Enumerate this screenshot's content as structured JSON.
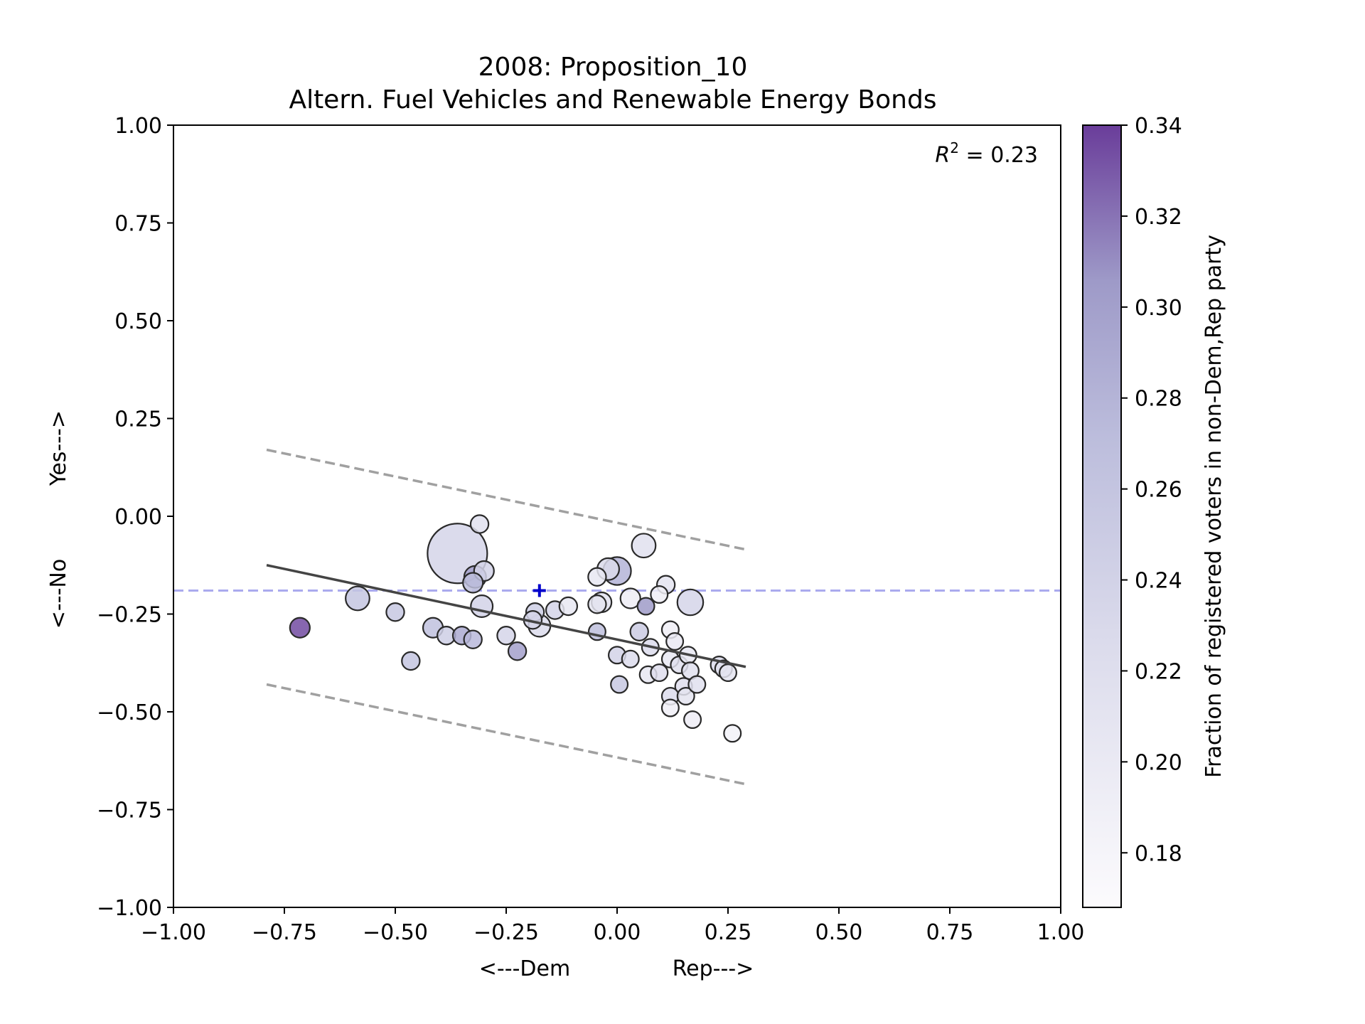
{
  "chart_data": {
    "type": "scatter",
    "title": "2008: Proposition_10",
    "subtitle": "Altern. Fuel Vehicles and Renewable Energy Bonds",
    "xlabel_left": "<---Dem",
    "xlabel_right": "Rep--->",
    "ylabel_bottom": "<---No",
    "ylabel_top": "Yes--->",
    "xlim": [
      -1.0,
      1.0
    ],
    "ylim": [
      -1.0,
      1.0
    ],
    "xticks": [
      -1.0,
      -0.75,
      -0.5,
      -0.25,
      0.0,
      0.25,
      0.5,
      0.75,
      1.0
    ],
    "yticks": [
      -1.0,
      -0.75,
      -0.5,
      -0.25,
      0.0,
      0.25,
      0.5,
      0.75,
      1.0
    ],
    "xtick_labels": [
      "−1.00",
      "−0.75",
      "−0.50",
      "−0.25",
      "0.00",
      "0.25",
      "0.50",
      "0.75",
      "1.00"
    ],
    "ytick_labels": [
      "−1.00",
      "−0.75",
      "−0.50",
      "−0.25",
      "0.00",
      "0.25",
      "0.50",
      "0.75",
      "1.00"
    ],
    "annotation_prefix": "R",
    "annotation_sup": "2",
    "annotation_suffix": " = 0.23",
    "reference_line_y": -0.19,
    "reference_color": "#aaaaee",
    "marker": {
      "x": -0.175,
      "y": -0.19,
      "color": "#0000cc"
    },
    "fit_line": {
      "x": [
        -0.79,
        0.29
      ],
      "y": [
        -0.125,
        -0.385
      ],
      "color": "#444444"
    },
    "bounds_upper": {
      "x": [
        -0.79,
        0.29
      ],
      "y": [
        0.17,
        -0.085
      ]
    },
    "bounds_lower": {
      "x": [
        -0.79,
        0.29
      ],
      "y": [
        -0.43,
        -0.685
      ]
    },
    "bounds_color": "#a0a0a0",
    "colorbar": {
      "label": "Fraction of registered voters in non-Dem,Rep party",
      "range": [
        0.168,
        0.34
      ],
      "ticks": [
        0.18,
        0.2,
        0.22,
        0.24,
        0.26,
        0.28,
        0.3,
        0.32,
        0.34
      ],
      "tick_labels": [
        "0.18",
        "0.20",
        "0.22",
        "0.24",
        "0.26",
        "0.28",
        "0.30",
        "0.32",
        "0.34"
      ],
      "colormap": "Purples",
      "color_low": "#fcfbfd",
      "color_high": "#6a3d9a"
    },
    "points": [
      {
        "x": -0.36,
        "y": -0.095,
        "size": 3.0,
        "c": 0.235
      },
      {
        "x": -0.31,
        "y": -0.02,
        "size": 0.9,
        "c": 0.215
      },
      {
        "x": -0.3,
        "y": -0.14,
        "size": 1.0,
        "c": 0.24
      },
      {
        "x": -0.32,
        "y": -0.155,
        "size": 1.1,
        "c": 0.3
      },
      {
        "x": -0.325,
        "y": -0.17,
        "size": 1.0,
        "c": 0.27
      },
      {
        "x": -0.305,
        "y": -0.23,
        "size": 1.1,
        "c": 0.24
      },
      {
        "x": -0.585,
        "y": -0.21,
        "size": 1.2,
        "c": 0.26
      },
      {
        "x": -0.715,
        "y": -0.285,
        "size": 1.0,
        "c": 0.335
      },
      {
        "x": -0.5,
        "y": -0.245,
        "size": 0.9,
        "c": 0.255
      },
      {
        "x": -0.465,
        "y": -0.37,
        "size": 0.9,
        "c": 0.26
      },
      {
        "x": -0.415,
        "y": -0.285,
        "size": 1.0,
        "c": 0.265
      },
      {
        "x": -0.385,
        "y": -0.305,
        "size": 0.9,
        "c": 0.245
      },
      {
        "x": -0.35,
        "y": -0.305,
        "size": 0.9,
        "c": 0.29
      },
      {
        "x": -0.325,
        "y": -0.315,
        "size": 0.9,
        "c": 0.275
      },
      {
        "x": -0.25,
        "y": -0.305,
        "size": 0.9,
        "c": 0.235
      },
      {
        "x": -0.225,
        "y": -0.345,
        "size": 0.9,
        "c": 0.3
      },
      {
        "x": -0.185,
        "y": -0.245,
        "size": 0.9,
        "c": 0.245
      },
      {
        "x": -0.19,
        "y": -0.265,
        "size": 0.9,
        "c": 0.235
      },
      {
        "x": -0.175,
        "y": -0.28,
        "size": 1.1,
        "c": 0.225
      },
      {
        "x": -0.14,
        "y": -0.24,
        "size": 0.9,
        "c": 0.235
      },
      {
        "x": -0.11,
        "y": -0.23,
        "size": 0.9,
        "c": 0.205
      },
      {
        "x": -0.045,
        "y": -0.155,
        "size": 0.9,
        "c": 0.205
      },
      {
        "x": -0.045,
        "y": -0.225,
        "size": 0.9,
        "c": 0.21
      },
      {
        "x": -0.035,
        "y": -0.22,
        "size": 1.0,
        "c": 0.215
      },
      {
        "x": -0.02,
        "y": -0.135,
        "size": 1.1,
        "c": 0.23
      },
      {
        "x": 0.0,
        "y": -0.14,
        "size": 1.4,
        "c": 0.28
      },
      {
        "x": -0.045,
        "y": -0.295,
        "size": 0.85,
        "c": 0.27
      },
      {
        "x": 0.0,
        "y": -0.355,
        "size": 0.85,
        "c": 0.24
      },
      {
        "x": 0.005,
        "y": -0.43,
        "size": 0.85,
        "c": 0.255
      },
      {
        "x": 0.03,
        "y": -0.21,
        "size": 1.0,
        "c": 0.195
      },
      {
        "x": 0.06,
        "y": -0.075,
        "size": 1.2,
        "c": 0.215
      },
      {
        "x": 0.065,
        "y": -0.23,
        "size": 0.85,
        "c": 0.305
      },
      {
        "x": 0.05,
        "y": -0.295,
        "size": 0.9,
        "c": 0.25
      },
      {
        "x": 0.03,
        "y": -0.365,
        "size": 0.85,
        "c": 0.225
      },
      {
        "x": 0.075,
        "y": -0.335,
        "size": 0.85,
        "c": 0.225
      },
      {
        "x": 0.07,
        "y": -0.405,
        "size": 0.85,
        "c": 0.205
      },
      {
        "x": 0.095,
        "y": -0.4,
        "size": 0.85,
        "c": 0.22
      },
      {
        "x": 0.095,
        "y": -0.2,
        "size": 0.85,
        "c": 0.19
      },
      {
        "x": 0.11,
        "y": -0.175,
        "size": 0.9,
        "c": 0.21
      },
      {
        "x": 0.165,
        "y": -0.22,
        "size": 1.3,
        "c": 0.235
      },
      {
        "x": 0.12,
        "y": -0.29,
        "size": 0.85,
        "c": 0.19
      },
      {
        "x": 0.13,
        "y": -0.32,
        "size": 0.85,
        "c": 0.2
      },
      {
        "x": 0.12,
        "y": -0.365,
        "size": 0.85,
        "c": 0.205
      },
      {
        "x": 0.14,
        "y": -0.38,
        "size": 0.85,
        "c": 0.215
      },
      {
        "x": 0.16,
        "y": -0.355,
        "size": 0.85,
        "c": 0.205
      },
      {
        "x": 0.165,
        "y": -0.395,
        "size": 0.85,
        "c": 0.215
      },
      {
        "x": 0.15,
        "y": -0.435,
        "size": 0.85,
        "c": 0.22
      },
      {
        "x": 0.12,
        "y": -0.46,
        "size": 0.85,
        "c": 0.225
      },
      {
        "x": 0.155,
        "y": -0.46,
        "size": 0.85,
        "c": 0.21
      },
      {
        "x": 0.12,
        "y": -0.49,
        "size": 0.85,
        "c": 0.19
      },
      {
        "x": 0.18,
        "y": -0.43,
        "size": 0.85,
        "c": 0.215
      },
      {
        "x": 0.17,
        "y": -0.52,
        "size": 0.85,
        "c": 0.195
      },
      {
        "x": 0.23,
        "y": -0.38,
        "size": 0.85,
        "c": 0.225
      },
      {
        "x": 0.24,
        "y": -0.39,
        "size": 0.85,
        "c": 0.215
      },
      {
        "x": 0.25,
        "y": -0.4,
        "size": 0.85,
        "c": 0.21
      },
      {
        "x": 0.26,
        "y": -0.555,
        "size": 0.85,
        "c": 0.185
      }
    ]
  }
}
